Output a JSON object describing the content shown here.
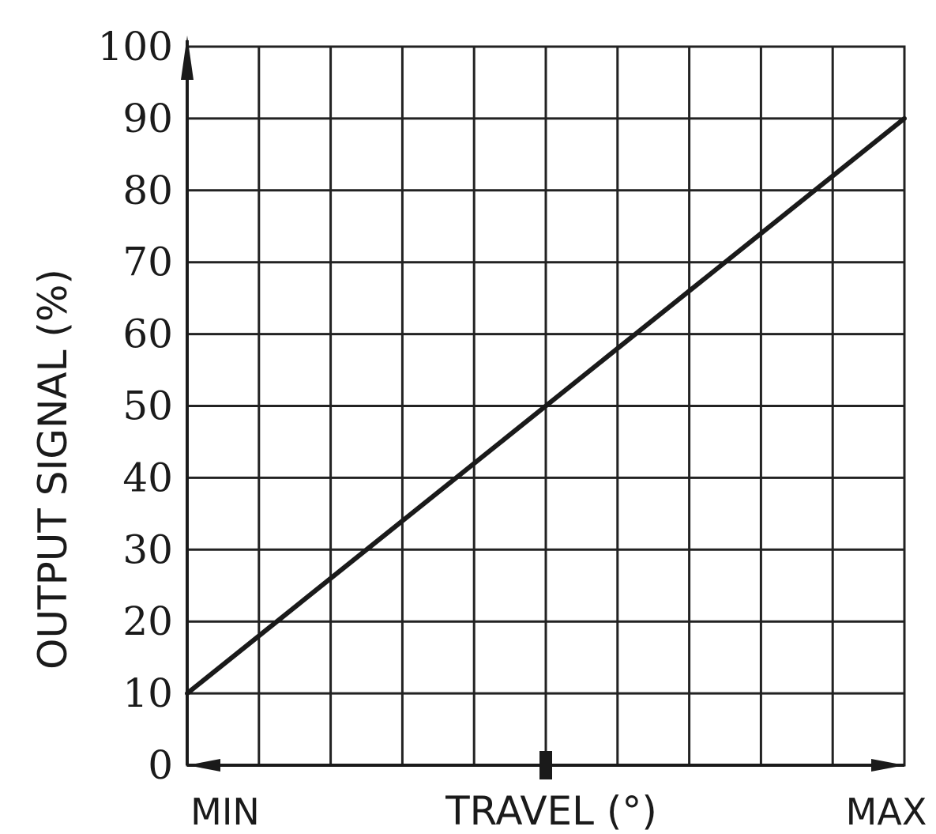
{
  "chart_data": {
    "type": "line",
    "title": "",
    "xlabel": "TRAVEL (°)",
    "ylabel": "OUTPUT  SIGNAL (%)",
    "x_tick_labels": {
      "start": "MIN",
      "end": "MAX"
    },
    "x_range": [
      0,
      100
    ],
    "ylim": [
      0,
      100
    ],
    "y_ticks": [
      0,
      10,
      20,
      30,
      40,
      50,
      60,
      70,
      80,
      90,
      100
    ],
    "grid": true,
    "x_grid_divisions": 10,
    "y_grid_divisions": 10,
    "series": [
      {
        "points": [
          {
            "x": 0,
            "y": 10
          },
          {
            "x": 100,
            "y": 90
          }
        ]
      }
    ],
    "markers": {
      "x_midpoint_tick": 50,
      "y_axis_arrow": "up",
      "x_axis_arrows": "both"
    },
    "colors": {
      "line": "#1a1a1a",
      "grid": "#222222",
      "background": "#ffffff"
    }
  }
}
